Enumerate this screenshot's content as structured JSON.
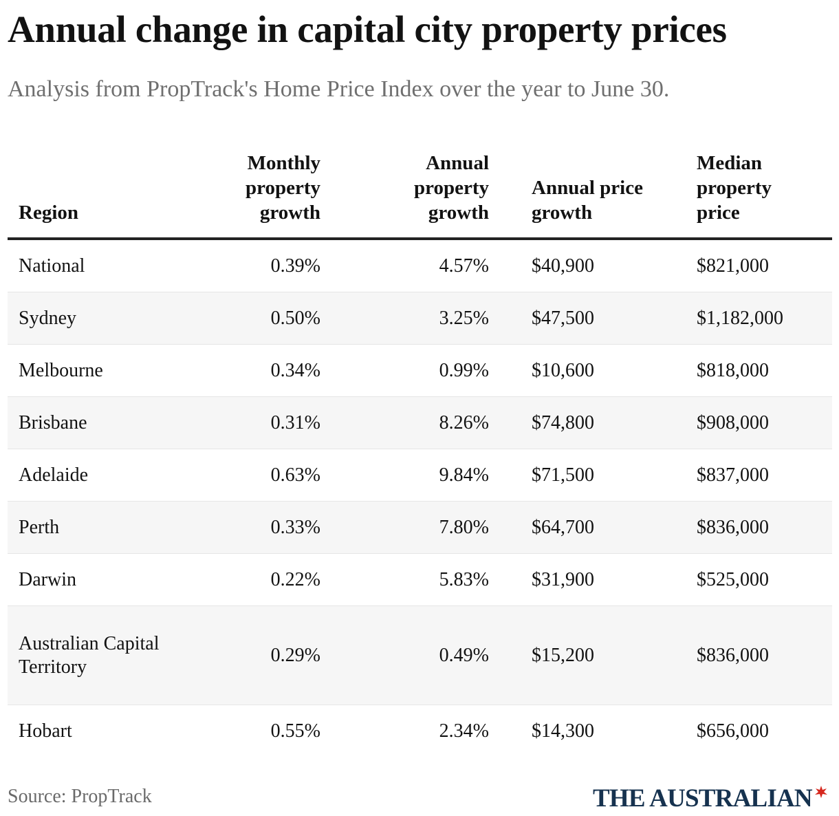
{
  "title": "Annual change in capital city property prices",
  "subtitle": "Analysis from PropTrack's Home Price Index over the year to June 30.",
  "source": "Source: PropTrack",
  "brand": {
    "name": "THE AUSTRALIAN",
    "icon": "flame-icon",
    "color": "#16324f",
    "icon_color": "#d6281e"
  },
  "chart_data": {
    "type": "table",
    "columns": [
      "Region",
      "Monthly property growth",
      "Annual property growth",
      "Annual price growth",
      "Median property price"
    ],
    "rows": [
      [
        "National",
        "0.39%",
        "4.57%",
        "$40,900",
        "$821,000"
      ],
      [
        "Sydney",
        "0.50%",
        "3.25%",
        "$47,500",
        "$1,182,000"
      ],
      [
        "Melbourne",
        "0.34%",
        "0.99%",
        "$10,600",
        "$818,000"
      ],
      [
        "Brisbane",
        "0.31%",
        "8.26%",
        "$74,800",
        "$908,000"
      ],
      [
        "Adelaide",
        "0.63%",
        "9.84%",
        "$71,500",
        "$837,000"
      ],
      [
        "Perth",
        "0.33%",
        "7.80%",
        "$64,700",
        "$836,000"
      ],
      [
        "Darwin",
        "0.22%",
        "5.83%",
        "$31,900",
        "$525,000"
      ],
      [
        "Australian Capital Territory",
        "0.29%",
        "0.49%",
        "$15,200",
        "$836,000"
      ],
      [
        "Hobart",
        "0.55%",
        "2.34%",
        "$14,300",
        "$656,000"
      ]
    ]
  }
}
